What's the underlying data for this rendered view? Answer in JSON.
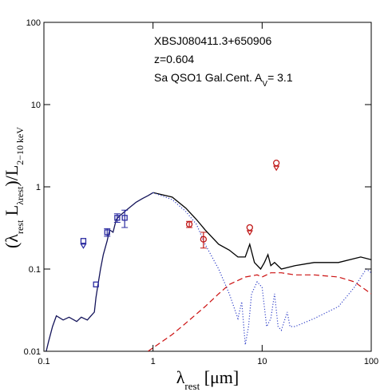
{
  "chart_data": {
    "type": "line",
    "xscale": "log",
    "yscale": "log",
    "xlim": [
      0.1,
      100
    ],
    "ylim": [
      0.01,
      100
    ],
    "xticks": [
      0.1,
      1,
      10,
      100
    ],
    "yticks": [
      0.01,
      0.1,
      1,
      10,
      100
    ],
    "x_label": [
      {
        "text": "λ"
      },
      {
        "text": "rest",
        "sub": true
      },
      {
        "text": "  [μm]"
      }
    ],
    "y_label": [
      {
        "text": "(λ"
      },
      {
        "text": "rest",
        "sub": true
      },
      {
        "text": "  L"
      },
      {
        "text": "λrest",
        "sub": true
      },
      {
        "text": ")/L"
      },
      {
        "text": "2−10 keV",
        "sub": true
      }
    ],
    "annotations": [
      [
        {
          "text": "XBSJ080411.3+650906"
        }
      ],
      [
        {
          "text": "z=0.604"
        }
      ],
      [
        {
          "text": "Sa QSO1 Gal.Cent. A"
        },
        {
          "text": "V",
          "sub": true
        },
        {
          "text": "= 3.1"
        }
      ]
    ],
    "series": [
      {
        "color": "#14145a",
        "style": "solid",
        "x": [
          0.105,
          0.11,
          0.12,
          0.13,
          0.15,
          0.17,
          0.2,
          0.22,
          0.25,
          0.27,
          0.29,
          0.3,
          0.31,
          0.33,
          0.35,
          0.38,
          0.4,
          0.43,
          0.46,
          0.5,
          0.55,
          0.6,
          0.7,
          0.8,
          0.9,
          1.0
        ],
        "values": [
          0.01,
          0.013,
          0.02,
          0.027,
          0.024,
          0.026,
          0.023,
          0.026,
          0.024,
          0.027,
          0.03,
          0.045,
          0.06,
          0.1,
          0.15,
          0.22,
          0.3,
          0.28,
          0.4,
          0.45,
          0.5,
          0.55,
          0.65,
          0.72,
          0.78,
          0.85
        ]
      },
      {
        "color": "#000000",
        "style": "solid",
        "x": [
          1.0,
          1.5,
          2,
          2.5,
          3,
          4,
          5,
          6,
          7,
          7.7,
          8.5,
          9.7,
          10.5,
          11.3,
          12,
          13,
          15,
          20,
          30,
          50,
          80,
          100
        ],
        "values": [
          0.85,
          0.75,
          0.55,
          0.4,
          0.3,
          0.2,
          0.17,
          0.14,
          0.14,
          0.2,
          0.12,
          0.1,
          0.12,
          0.15,
          0.11,
          0.12,
          0.1,
          0.11,
          0.12,
          0.12,
          0.14,
          0.13
        ]
      },
      {
        "color": "#3040c8",
        "style": "dotted",
        "x": [
          1.0,
          1.5,
          2,
          2.5,
          3,
          4,
          5,
          6,
          6.5,
          7,
          7.5,
          8,
          9,
          10,
          11,
          12,
          13,
          14,
          15,
          17,
          18,
          20,
          30,
          50,
          70,
          90,
          100
        ],
        "values": [
          0.85,
          0.7,
          0.5,
          0.35,
          0.2,
          0.1,
          0.05,
          0.025,
          0.04,
          0.012,
          0.02,
          0.05,
          0.07,
          0.06,
          0.02,
          0.025,
          0.05,
          0.02,
          0.018,
          0.03,
          0.02,
          0.02,
          0.025,
          0.035,
          0.06,
          0.1,
          0.09
        ]
      },
      {
        "color": "#cc1010",
        "style": "dashed",
        "x": [
          0.9,
          1,
          1.5,
          2,
          3,
          4,
          5,
          7,
          9,
          10,
          12,
          15,
          20,
          30,
          50,
          70,
          100
        ],
        "values": [
          0.01,
          0.011,
          0.016,
          0.022,
          0.035,
          0.05,
          0.065,
          0.08,
          0.085,
          0.08,
          0.09,
          0.09,
          0.085,
          0.085,
          0.08,
          0.07,
          0.05
        ]
      }
    ],
    "points": [
      {
        "color": "#2a2aa0",
        "marker": "square",
        "x": [
          0.23,
          0.3,
          0.38,
          0.47,
          0.55
        ],
        "values": [
          0.22,
          0.065,
          0.28,
          0.42,
          0.42
        ],
        "errors": [
          null,
          null,
          0.03,
          0.05,
          0.1
        ],
        "upper_limit": [
          true,
          false,
          false,
          false,
          false
        ]
      },
      {
        "color": "#c01818",
        "marker": "circle",
        "x": [
          2.15,
          2.9,
          7.7,
          13.5
        ],
        "values": [
          0.35,
          0.23,
          0.32,
          1.95
        ],
        "errors": [
          0.03,
          0.05,
          null,
          null
        ],
        "upper_limit": [
          false,
          false,
          true,
          true
        ]
      }
    ]
  }
}
